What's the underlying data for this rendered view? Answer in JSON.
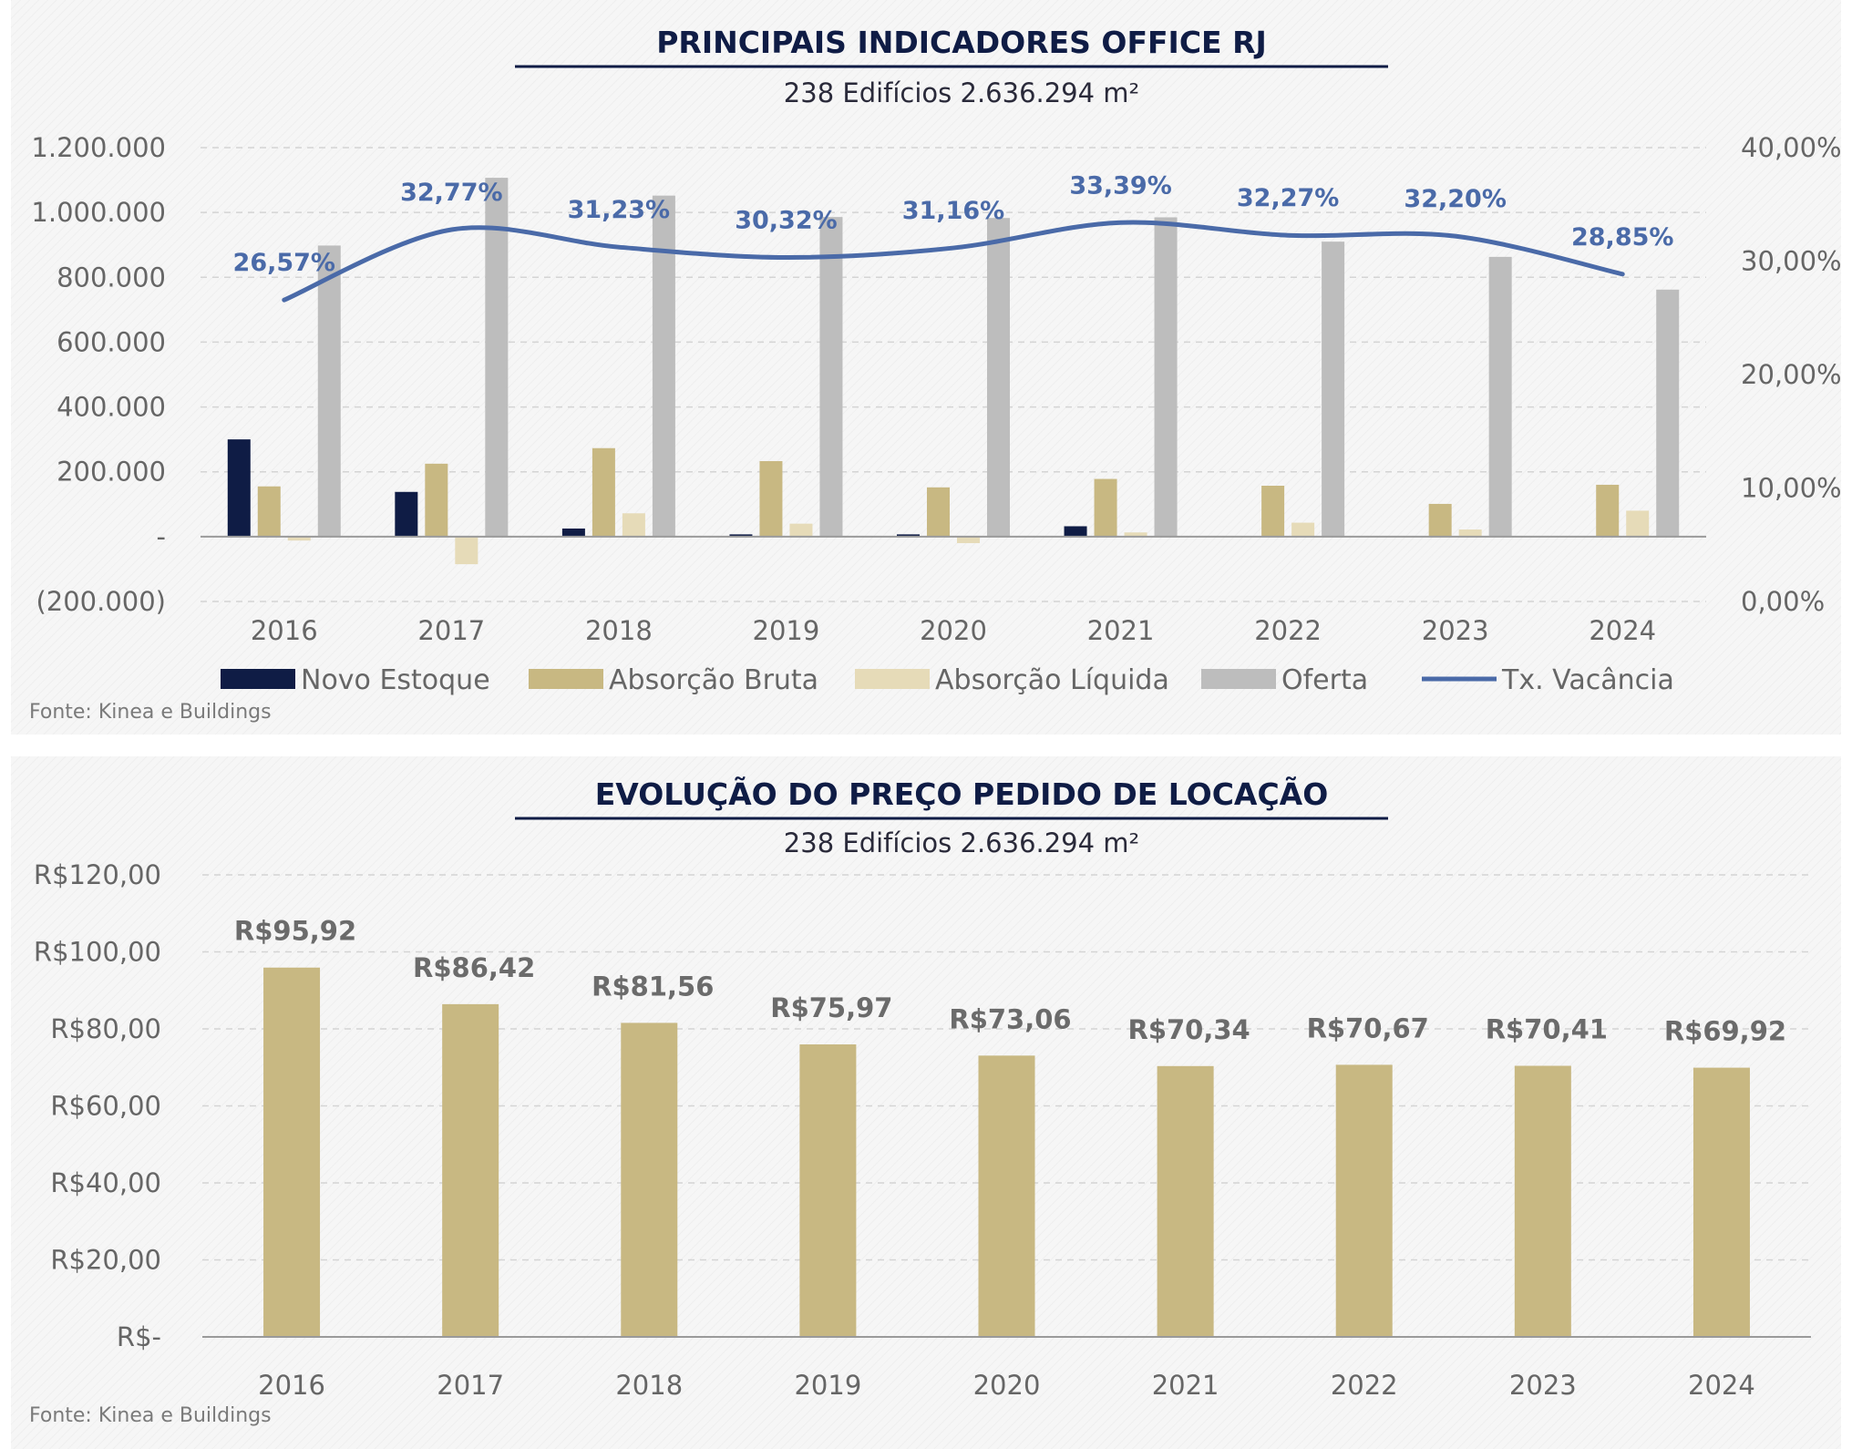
{
  "colors": {
    "navy": "#0f1c45",
    "gold": "#c8b882",
    "light_gold": "#e6dbb8",
    "gray": "#bdbdbd",
    "line_blue": "#4a6aa8",
    "grid": "#d4d4d4"
  },
  "chart_data": [
    {
      "type": "bar",
      "title": "PRINCIPAIS INDICADORES OFFICE RJ",
      "subtitle": "238 Edifícios 2.636.294 m²",
      "categories": [
        "2016",
        "2017",
        "2018",
        "2019",
        "2020",
        "2021",
        "2022",
        "2023",
        "2024"
      ],
      "series": [
        {
          "name": "Novo Estoque",
          "color": "#0f1c45",
          "values": [
            300000,
            138000,
            25000,
            7000,
            7000,
            32000,
            0,
            0,
            0
          ]
        },
        {
          "name": "Absorção Bruta",
          "color": "#c8b882",
          "values": [
            155000,
            225000,
            273000,
            233000,
            152000,
            178000,
            157000,
            101000,
            160000
          ]
        },
        {
          "name": "Absorção Líquida",
          "color": "#e6dbb8",
          "values": [
            -12000,
            -85000,
            72000,
            40000,
            -20000,
            13000,
            43000,
            22000,
            80000
          ]
        },
        {
          "name": "Oferta",
          "color": "#bdbdbd",
          "values": [
            898000,
            1107000,
            1052000,
            986000,
            983000,
            985000,
            910000,
            863000,
            762000
          ]
        },
        {
          "name": "Tx. Vacância",
          "type": "line",
          "axis": "right",
          "color": "#4a6aa8",
          "values": [
            26.57,
            32.77,
            31.23,
            30.32,
            31.16,
            33.39,
            32.27,
            32.2,
            28.85
          ],
          "labels": [
            "26,57%",
            "32,77%",
            "31,23%",
            "30,32%",
            "31,16%",
            "33,39%",
            "32,27%",
            "32,20%",
            "28,85%"
          ]
        }
      ],
      "ylim": [
        -200000,
        1200000
      ],
      "y_ticks": [
        {
          "value": 1200000,
          "label": "1.200.000"
        },
        {
          "value": 1000000,
          "label": "1.000.000"
        },
        {
          "value": 800000,
          "label": "800.000"
        },
        {
          "value": 600000,
          "label": "600.000"
        },
        {
          "value": 400000,
          "label": "400.000"
        },
        {
          "value": 200000,
          "label": "200.000"
        },
        {
          "value": 0,
          "label": "-"
        },
        {
          "value": -200000,
          "label": "(200.000)"
        }
      ],
      "y2lim": [
        0,
        40
      ],
      "y2_ticks": [
        {
          "value": 40,
          "label": "40,00%"
        },
        {
          "value": 30,
          "label": "30,00%"
        },
        {
          "value": 20,
          "label": "20,00%"
        },
        {
          "value": 10,
          "label": "10,00%"
        },
        {
          "value": 0,
          "label": "0,00%"
        }
      ],
      "grid": true,
      "legend": "bottom",
      "source": "Fonte: Kinea e Buildings"
    },
    {
      "type": "bar",
      "title": "EVOLUÇÃO DO PREÇO PEDIDO DE LOCAÇÃO",
      "subtitle": "238 Edifícios 2.636.294 m²",
      "categories": [
        "2016",
        "2017",
        "2018",
        "2019",
        "2020",
        "2021",
        "2022",
        "2023",
        "2024"
      ],
      "values": [
        95.92,
        86.42,
        81.56,
        75.97,
        73.06,
        70.34,
        70.67,
        70.41,
        69.92
      ],
      "value_labels": [
        "R$95,92",
        "R$86,42",
        "R$81,56",
        "R$75,97",
        "R$73,06",
        "R$70,34",
        "R$70,67",
        "R$70,41",
        "R$69,92"
      ],
      "color": "#c8b882",
      "ylim": [
        0,
        120
      ],
      "y_ticks": [
        {
          "value": 120,
          "label": "R$120,00"
        },
        {
          "value": 100,
          "label": "R$100,00"
        },
        {
          "value": 80,
          "label": "R$80,00"
        },
        {
          "value": 60,
          "label": "R$60,00"
        },
        {
          "value": 40,
          "label": "R$40,00"
        },
        {
          "value": 20,
          "label": "R$20,00"
        },
        {
          "value": 0,
          "label": "R$-"
        }
      ],
      "grid": true,
      "legend": "none",
      "source": "Fonte: Kinea e Buildings"
    }
  ]
}
